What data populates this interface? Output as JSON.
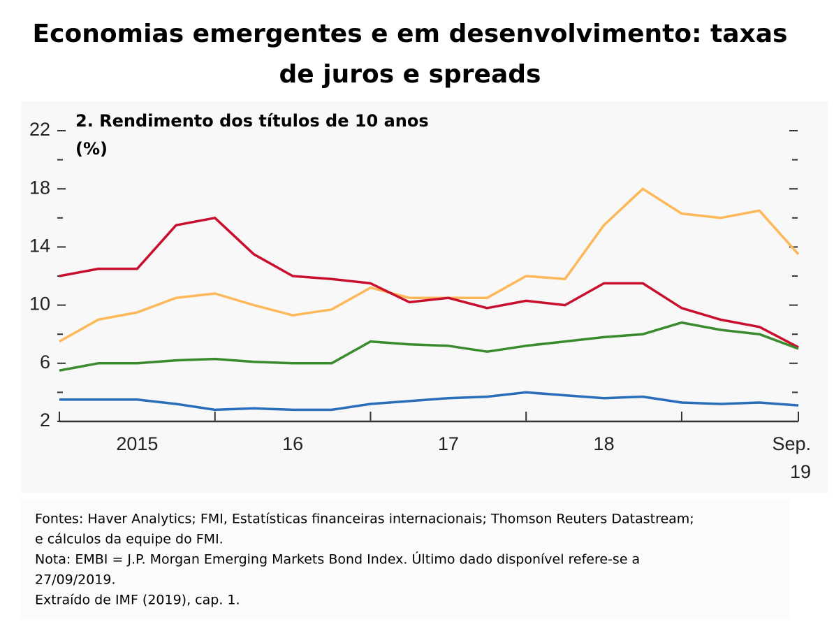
{
  "chart_data": {
    "type": "line",
    "title_lines": [
      "Economias emergentes e em desenvolvimento: taxas",
      "de juros e spreads"
    ],
    "subtitle_lines": [
      "2. Rendimento dos títulos de 10 anos",
      "(%)"
    ],
    "x": [
      2015,
      2015.25,
      2015.5,
      2015.75,
      2016,
      2016.25,
      2016.5,
      2016.75,
      2017,
      2017.25,
      2017.5,
      2017.75,
      2018,
      2018.25,
      2018.5,
      2018.75,
      2019,
      2019.25,
      2019.5,
      2019.75
    ],
    "series": [
      {
        "color": "#fdb85a",
        "values": [
          7.5,
          9,
          9.5,
          10.5,
          10.8,
          10,
          9.3,
          9.7,
          11.2,
          10.5,
          10.5,
          10.5,
          12,
          11.8,
          15.5,
          18,
          16.3,
          16,
          16.5,
          13.5
        ]
      },
      {
        "color": "#c8102e",
        "values": [
          12,
          12.5,
          12.5,
          15.5,
          16,
          13.5,
          12,
          11.8,
          11.5,
          10.2,
          10.5,
          9.8,
          10.3,
          10,
          11.5,
          11.5,
          9.8,
          9,
          8.5,
          7.1
        ]
      },
      {
        "color": "#3a8a2e",
        "values": [
          5.5,
          6,
          6,
          6.2,
          6.3,
          6.1,
          6,
          6,
          7.5,
          7.3,
          7.2,
          6.8,
          7.2,
          7.5,
          7.8,
          8,
          8.8,
          8.3,
          8,
          7
        ]
      },
      {
        "color": "#2a6ebb",
        "values": [
          3.5,
          3.5,
          3.5,
          3.2,
          2.8,
          2.9,
          2.8,
          2.8,
          3.2,
          3.4,
          3.6,
          3.7,
          4,
          3.8,
          3.6,
          3.7,
          3.3,
          3.2,
          3.3,
          3.1
        ]
      }
    ],
    "xlim": [
      2015,
      2019.75
    ],
    "xticks": [
      {
        "value": 2015.5,
        "label": "2015"
      },
      {
        "value": 2016.5,
        "label": "16"
      },
      {
        "value": 2017.5,
        "label": "17"
      },
      {
        "value": 2018.5,
        "label": "18"
      },
      {
        "value": 2019.75,
        "label": "Sep.\n19"
      }
    ],
    "ylim": [
      2,
      22
    ],
    "yticks": [
      2,
      6,
      10,
      14,
      18,
      22
    ],
    "yticks_minor": [
      4,
      8,
      12,
      16,
      20
    ],
    "notes": [
      "Fontes: Haver Analytics; FMI, Estatísticas financeiras internacionais; Thomson Reuters Datastream;",
      "e cálculos da equipe do FMI.",
      "Nota: EMBI = J.P. Morgan Emerging Markets Bond Index. Último dado disponível refere-se a",
      "27/09/2019.",
      "Extraído de IMF (2019), cap. 1."
    ]
  }
}
